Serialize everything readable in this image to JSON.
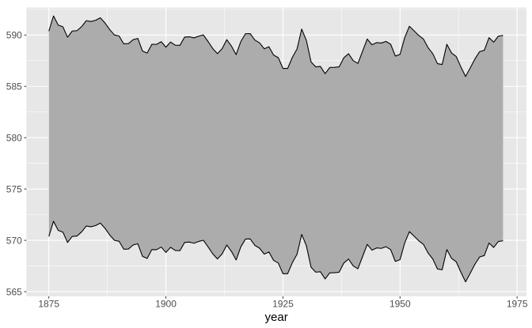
{
  "figure": {
    "background": "#ffffff",
    "panel_background": "#E7E7E7",
    "grid_color": "#FFFFFF",
    "ribbon_fill": "#ACACAC",
    "ribbon_line_color": "#000000",
    "tick_mark_color": "#333333",
    "tick_label_color": "#4D4D4D",
    "axis_title_color": "#000000"
  },
  "chart_data": {
    "type": "area",
    "subtype": "ribbon",
    "title": "",
    "xlabel": "year",
    "ylabel": "",
    "legend": "none",
    "grid": true,
    "x_start": 1875,
    "x_end": 1972,
    "ribbon_halfwidth": 10,
    "upper_formula": "level + 10",
    "lower_formula": "level - 10",
    "levels": [
      580.38,
      581.86,
      580.97,
      580.8,
      579.79,
      580.39,
      580.42,
      580.82,
      581.4,
      581.32,
      581.44,
      581.68,
      581.17,
      580.53,
      580.01,
      579.91,
      579.14,
      579.16,
      579.55,
      579.67,
      578.44,
      578.24,
      579.1,
      579.09,
      579.35,
      578.82,
      579.32,
      579.01,
      579.0,
      579.8,
      579.83,
      579.72,
      579.89,
      580.01,
      579.37,
      578.69,
      578.19,
      578.67,
      579.55,
      578.92,
      578.09,
      579.37,
      580.13,
      580.14,
      579.51,
      579.24,
      578.66,
      578.86,
      578.05,
      577.79,
      576.75,
      576.75,
      577.82,
      578.64,
      580.58,
      579.48,
      577.38,
      576.9,
      576.94,
      576.24,
      576.84,
      576.85,
      576.9,
      577.79,
      578.18,
      577.51,
      577.23,
      578.42,
      579.61,
      579.05,
      579.26,
      579.22,
      579.38,
      579.1,
      577.95,
      578.12,
      579.75,
      580.85,
      580.41,
      579.96,
      579.61,
      578.76,
      578.18,
      577.21,
      577.13,
      579.1,
      578.25,
      577.91,
      576.89,
      575.96,
      576.8,
      577.68,
      578.38,
      578.52,
      579.74,
      579.31,
      579.89,
      579.96
    ],
    "x_ticks": [
      1875,
      1900,
      1925,
      1950,
      1975
    ],
    "y_ticks": [
      565,
      570,
      575,
      580,
      585,
      590
    ],
    "x_minor_ticks": [
      1887.5,
      1912.5,
      1937.5,
      1962.5
    ],
    "y_minor_ticks": [
      567.5,
      572.5,
      577.5,
      582.5,
      587.5,
      592.5
    ],
    "xlim": [
      1870.2,
      1977.0
    ],
    "ylim": [
      564.55,
      592.68
    ]
  }
}
